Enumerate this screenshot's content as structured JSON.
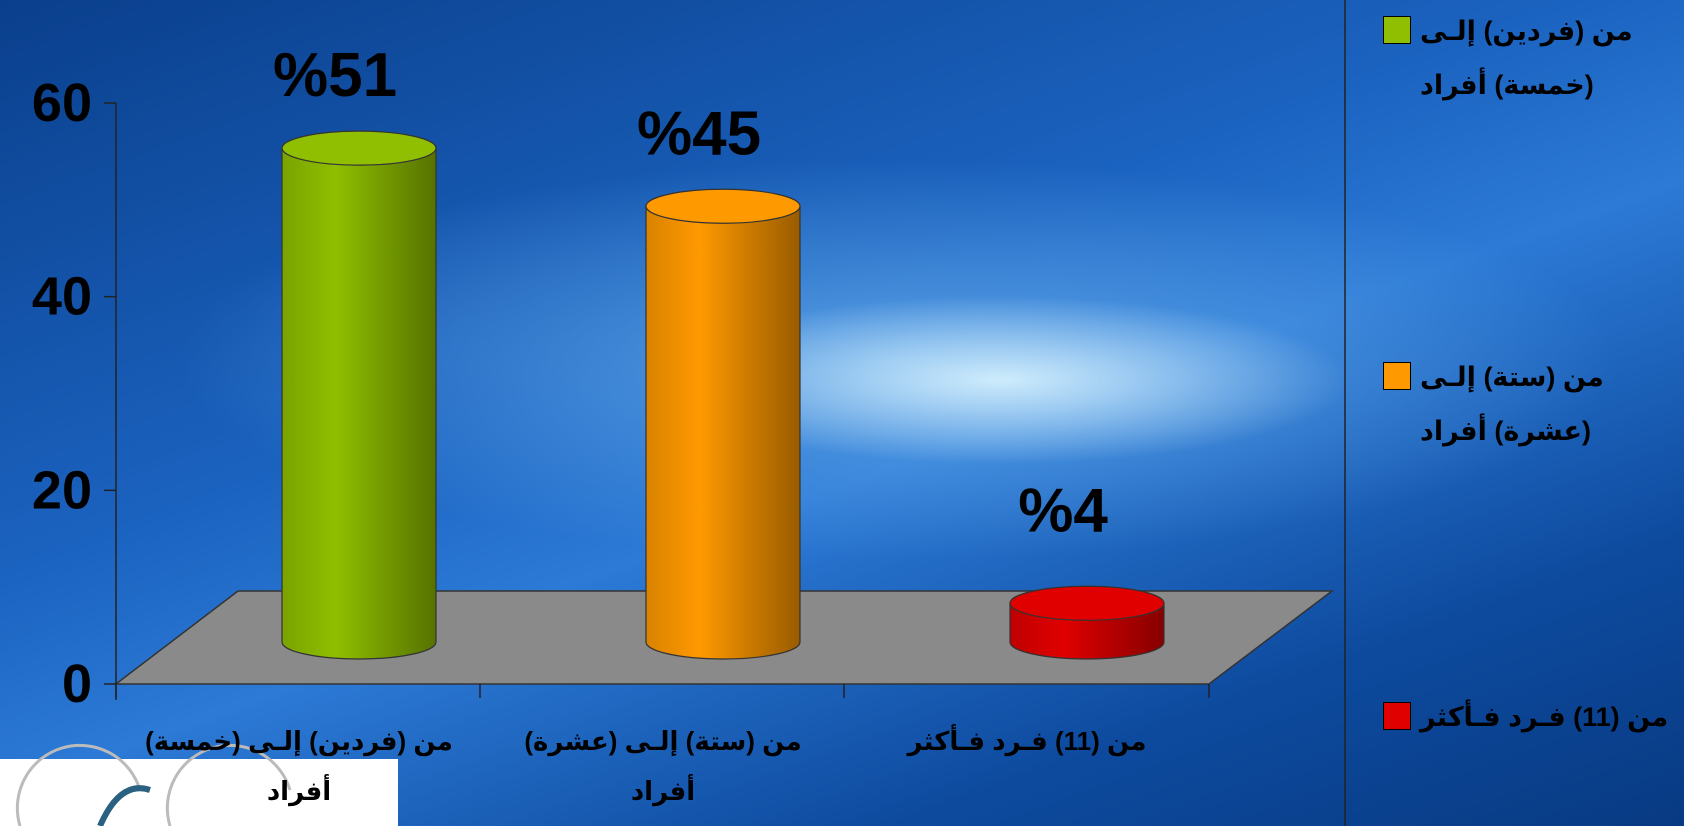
{
  "chart_data": {
    "type": "bar3d",
    "categories": [
      "من (فردين) إلـى (خمسة) أفراد",
      "من (ستة) إلـى (عشرة) أفراد",
      "من (11) فـرد فـأكثر"
    ],
    "series": [
      {
        "name": "من (فردين) إلـى (خمسة) أفراد",
        "color": "#8fbf00"
      },
      {
        "name": "من (ستة) إلـى (عشرة) أفراد",
        "color": "#ff9900"
      },
      {
        "name": "من (11) فـرد فـأكثر",
        "color": "#e00000"
      }
    ],
    "values": [
      51,
      45,
      4
    ],
    "value_labels": [
      "%51",
      "%45",
      "%4"
    ],
    "ylim": [
      0,
      60
    ],
    "yticks": [
      0,
      20,
      40,
      60
    ],
    "legend": "right"
  }
}
